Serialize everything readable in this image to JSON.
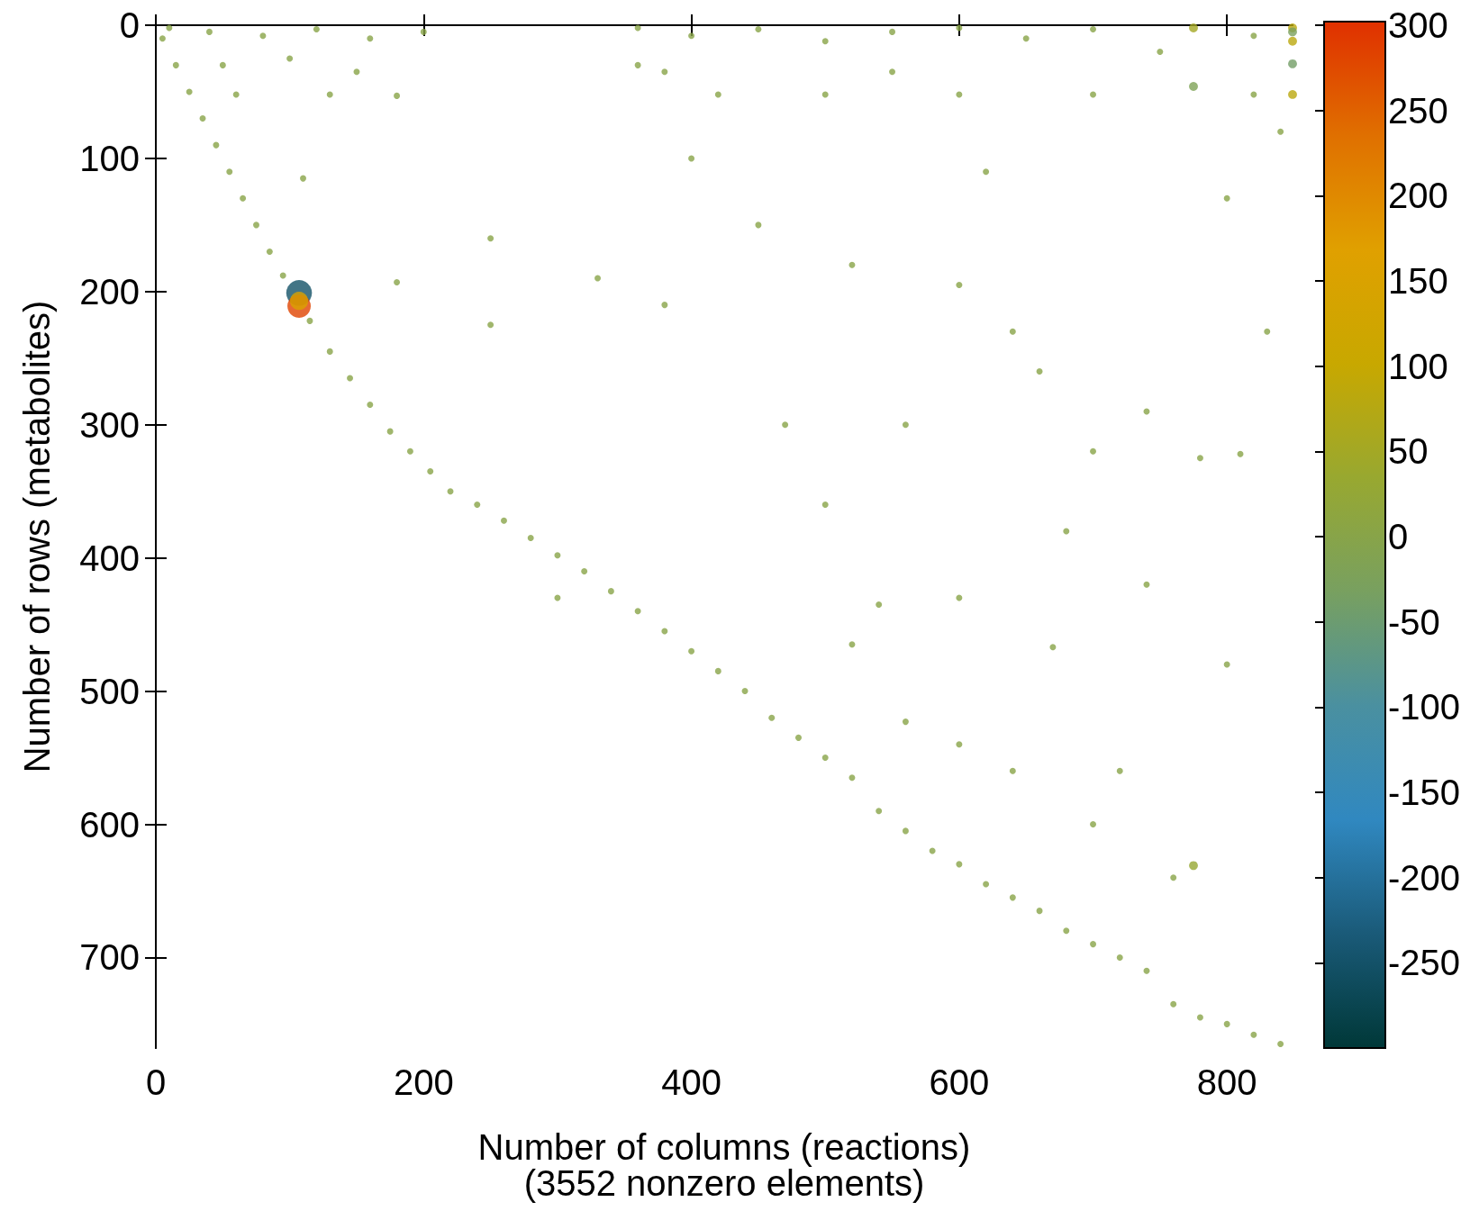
{
  "chart_data": {
    "type": "scatter",
    "xlabel": "Number of columns (reactions)",
    "ylabel": "Number of rows (metabolites)",
    "annotations": [
      "(3552 nonzero elements)"
    ],
    "xlim": [
      0,
      849
    ],
    "ylim": [
      768,
      0
    ],
    "xticks": [
      0,
      200,
      400,
      600,
      800
    ],
    "yticks": [
      0,
      100,
      200,
      300,
      400,
      500,
      600,
      700
    ],
    "clim": [
      -300,
      300
    ],
    "cticks": [
      -250,
      -200,
      -150,
      -100,
      -50,
      0,
      50,
      100,
      150,
      200,
      250,
      300
    ],
    "grid": false,
    "x": [
      5,
      15,
      25,
      35,
      45,
      55,
      65,
      75,
      85,
      95,
      115,
      130,
      145,
      160,
      175,
      190,
      205,
      220,
      240,
      260,
      280,
      300,
      320,
      340,
      360,
      380,
      400,
      420,
      440,
      460,
      480,
      500,
      520,
      540,
      560,
      580,
      600,
      620,
      640,
      660,
      680,
      700,
      720,
      740,
      760,
      780,
      800,
      820,
      840,
      10,
      40,
      80,
      120,
      160,
      200,
      50,
      100,
      150,
      60,
      130,
      180,
      360,
      400,
      450,
      500,
      550,
      600,
      650,
      700,
      750,
      820,
      360,
      420,
      500,
      600,
      700,
      820,
      380,
      550,
      110,
      180,
      250,
      300,
      400,
      450,
      520,
      560,
      600,
      620,
      640,
      660,
      700,
      740,
      780,
      810,
      830,
      540,
      520,
      670,
      560,
      600,
      720,
      700,
      760,
      800,
      740,
      640,
      380,
      470,
      250,
      330,
      500,
      600,
      680,
      800,
      840,
      107,
      107,
      107,
      849,
      849,
      849,
      849,
      849,
      775,
      775,
      775
    ],
    "values": [
      10,
      30,
      50,
      70,
      90,
      110,
      130,
      150,
      170,
      188,
      222,
      245,
      265,
      285,
      305,
      320,
      335,
      350,
      360,
      372,
      385,
      398,
      410,
      425,
      440,
      455,
      470,
      485,
      500,
      520,
      535,
      550,
      565,
      590,
      605,
      620,
      630,
      645,
      655,
      665,
      680,
      690,
      700,
      710,
      735,
      745,
      750,
      758,
      765,
      2,
      5,
      8,
      3,
      10,
      5,
      30,
      25,
      35,
      52,
      52,
      53,
      2,
      8,
      3,
      12,
      5,
      2,
      10,
      3,
      20,
      8,
      30,
      52,
      52,
      52,
      52,
      52,
      35,
      35,
      115,
      193,
      225,
      430,
      100,
      150,
      180,
      300,
      195,
      110,
      230,
      260,
      320,
      290,
      325,
      322,
      230,
      435,
      465,
      467,
      523,
      540,
      560,
      600,
      640,
      480,
      420,
      560,
      210,
      300,
      160,
      190,
      360,
      430,
      380,
      130,
      80,
      201,
      211,
      207,
      2,
      5,
      12,
      29,
      52,
      2,
      46,
      631
    ],
    "cvalues": [
      1,
      -1,
      1,
      -1,
      1,
      -1,
      1,
      -1,
      1,
      -1,
      1,
      -1,
      1,
      -1,
      1,
      -1,
      1,
      -1,
      1,
      -1,
      1,
      -1,
      1,
      -1,
      1,
      -1,
      1,
      -1,
      1,
      -1,
      1,
      -1,
      1,
      -1,
      1,
      -1,
      1,
      -1,
      1,
      -1,
      1,
      -1,
      1,
      -1,
      1,
      -1,
      1,
      -1,
      1,
      1,
      -1,
      1,
      1,
      -1,
      1,
      1,
      -1,
      1,
      1,
      -1,
      1,
      1,
      -1,
      1,
      1,
      -1,
      1,
      1,
      -1,
      1,
      1,
      -1,
      1,
      1,
      -1,
      1,
      1,
      -1,
      1,
      1,
      -1,
      1,
      1,
      -1,
      1,
      1,
      -1,
      1,
      1,
      -1,
      1,
      1,
      -1,
      1,
      1,
      -1,
      1,
      1,
      -1,
      1,
      1,
      -1,
      1,
      1,
      -1,
      1,
      1,
      -1,
      1,
      1,
      -1,
      1,
      1,
      -1,
      1,
      1,
      -250,
      280,
      150,
      80,
      -30,
      80,
      -40,
      80,
      50,
      -20,
      30
    ],
    "sizes": [
      0.06,
      0.06,
      0.06,
      0.06,
      0.06,
      0.06,
      0.06,
      0.06,
      0.06,
      0.06,
      0.06,
      0.06,
      0.06,
      0.06,
      0.06,
      0.06,
      0.06,
      0.06,
      0.06,
      0.06,
      0.06,
      0.06,
      0.06,
      0.06,
      0.06,
      0.06,
      0.06,
      0.06,
      0.06,
      0.06,
      0.06,
      0.06,
      0.06,
      0.06,
      0.06,
      0.06,
      0.06,
      0.06,
      0.06,
      0.06,
      0.06,
      0.06,
      0.06,
      0.06,
      0.06,
      0.06,
      0.06,
      0.06,
      0.06,
      0.06,
      0.06,
      0.06,
      0.06,
      0.06,
      0.06,
      0.06,
      0.06,
      0.06,
      0.06,
      0.06,
      0.06,
      0.06,
      0.06,
      0.06,
      0.06,
      0.06,
      0.06,
      0.06,
      0.06,
      0.06,
      0.06,
      0.06,
      0.06,
      0.06,
      0.06,
      0.06,
      0.06,
      0.06,
      0.06,
      0.06,
      0.06,
      0.06,
      0.06,
      0.06,
      0.06,
      0.06,
      0.06,
      0.06,
      0.06,
      0.06,
      0.06,
      0.06,
      0.06,
      0.06,
      0.06,
      0.06,
      0.06,
      0.06,
      0.06,
      0.06,
      0.06,
      0.06,
      0.06,
      0.06,
      0.06,
      0.06,
      0.06,
      0.06,
      0.06,
      0.06,
      0.06,
      0.06,
      0.06,
      0.06,
      0.06,
      0.06,
      1,
      0.83,
      0.5,
      0.12,
      0.12,
      0.12,
      0.12,
      0.12,
      0.12,
      0.12,
      0.12
    ]
  }
}
